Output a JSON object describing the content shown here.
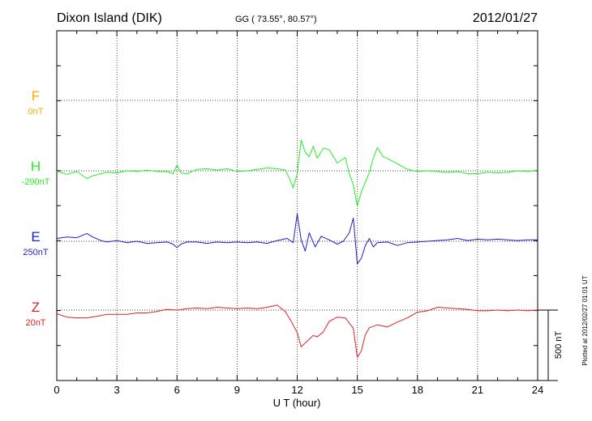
{
  "header": {
    "station": "Dixon Island (DIK)",
    "coords": "GG ( 73.55°,  80.57°)",
    "date": "2012/01/27"
  },
  "footer": {
    "plotted": "Plotted at 2012/02/27 01:01 UT"
  },
  "chart_data": {
    "type": "line",
    "xlabel": "U T (hour)",
    "xlim": [
      0,
      24
    ],
    "xticks": [
      0,
      3,
      6,
      9,
      12,
      15,
      18,
      21,
      24
    ],
    "grid": true,
    "scale_bar": {
      "label": "500 nT",
      "value_nT": 500
    },
    "series": [
      {
        "name": "F",
        "baseline": "0nT",
        "color": "#ffaa00",
        "points": []
      },
      {
        "name": "H",
        "baseline": "-290nT",
        "color": "#22ee22",
        "points": [
          [
            0,
            -3
          ],
          [
            0.5,
            -25
          ],
          [
            1,
            -5
          ],
          [
            1.5,
            -55
          ],
          [
            1.8,
            -35
          ],
          [
            2.5,
            -10
          ],
          [
            3,
            -15
          ],
          [
            3.5,
            0
          ],
          [
            4,
            -5
          ],
          [
            4.5,
            5
          ],
          [
            5,
            -5
          ],
          [
            5.5,
            -5
          ],
          [
            5.8,
            -20
          ],
          [
            6,
            40
          ],
          [
            6.2,
            -15
          ],
          [
            6.5,
            -20
          ],
          [
            7,
            10
          ],
          [
            7.5,
            15
          ],
          [
            8,
            5
          ],
          [
            8.5,
            15
          ],
          [
            9,
            -5
          ],
          [
            9.5,
            0
          ],
          [
            10,
            10
          ],
          [
            10.5,
            20
          ],
          [
            11,
            15
          ],
          [
            11.4,
            5
          ],
          [
            11.6,
            -50
          ],
          [
            11.8,
            -120
          ],
          [
            12,
            -20
          ],
          [
            12.2,
            220
          ],
          [
            12.4,
            130
          ],
          [
            12.6,
            100
          ],
          [
            12.8,
            175
          ],
          [
            13,
            90
          ],
          [
            13.3,
            160
          ],
          [
            13.6,
            150
          ],
          [
            14,
            55
          ],
          [
            14.4,
            95
          ],
          [
            14.6,
            -20
          ],
          [
            14.8,
            -100
          ],
          [
            15,
            -250
          ],
          [
            15.2,
            -150
          ],
          [
            15.4,
            -80
          ],
          [
            15.6,
            -15
          ],
          [
            15.8,
            90
          ],
          [
            16,
            165
          ],
          [
            16.3,
            100
          ],
          [
            16.6,
            80
          ],
          [
            17,
            50
          ],
          [
            17.5,
            10
          ],
          [
            18,
            -5
          ],
          [
            18.5,
            0
          ],
          [
            19,
            -5
          ],
          [
            19.5,
            -10
          ],
          [
            20,
            -5
          ],
          [
            20.5,
            -20
          ],
          [
            21,
            -20
          ],
          [
            21.5,
            -10
          ],
          [
            22,
            -15
          ],
          [
            22.5,
            -10
          ],
          [
            23,
            0
          ],
          [
            23.5,
            -5
          ],
          [
            24,
            5
          ]
        ]
      },
      {
        "name": "E",
        "baseline": "250nT",
        "color": "#1e1ecc",
        "points": [
          [
            0,
            20
          ],
          [
            0.5,
            30
          ],
          [
            1,
            25
          ],
          [
            1.5,
            55
          ],
          [
            1.8,
            30
          ],
          [
            2.2,
            5
          ],
          [
            2.5,
            -5
          ],
          [
            3,
            5
          ],
          [
            3.5,
            -10
          ],
          [
            4,
            0
          ],
          [
            4.5,
            -15
          ],
          [
            5,
            -10
          ],
          [
            5.5,
            -5
          ],
          [
            5.8,
            -20
          ],
          [
            6,
            -45
          ],
          [
            6.2,
            -20
          ],
          [
            6.5,
            -5
          ],
          [
            7,
            -5
          ],
          [
            7.5,
            -15
          ],
          [
            8,
            -5
          ],
          [
            8.5,
            -10
          ],
          [
            9,
            -5
          ],
          [
            9.5,
            -10
          ],
          [
            10,
            -5
          ],
          [
            10.5,
            -15
          ],
          [
            11,
            5
          ],
          [
            11.5,
            20
          ],
          [
            11.8,
            -10
          ],
          [
            12,
            195
          ],
          [
            12.2,
            10
          ],
          [
            12.4,
            -70
          ],
          [
            12.6,
            60
          ],
          [
            12.9,
            -40
          ],
          [
            13.2,
            35
          ],
          [
            13.6,
            10
          ],
          [
            14,
            -20
          ],
          [
            14.3,
            0
          ],
          [
            14.6,
            60
          ],
          [
            14.8,
            165
          ],
          [
            15,
            -160
          ],
          [
            15.2,
            -120
          ],
          [
            15.4,
            -30
          ],
          [
            15.6,
            20
          ],
          [
            15.8,
            -40
          ],
          [
            16,
            -10
          ],
          [
            16.5,
            -5
          ],
          [
            17,
            -30
          ],
          [
            17.5,
            -10
          ],
          [
            18,
            -5
          ],
          [
            18.5,
            0
          ],
          [
            19,
            5
          ],
          [
            19.5,
            10
          ],
          [
            20,
            20
          ],
          [
            20.5,
            5
          ],
          [
            21,
            15
          ],
          [
            21.5,
            10
          ],
          [
            22,
            15
          ],
          [
            22.5,
            10
          ],
          [
            23,
            5
          ],
          [
            23.5,
            10
          ],
          [
            24,
            10
          ]
        ]
      },
      {
        "name": "Z",
        "baseline": "20nT",
        "color": "#dd2222",
        "points": [
          [
            0,
            -25
          ],
          [
            0.5,
            -50
          ],
          [
            1,
            -55
          ],
          [
            1.5,
            -55
          ],
          [
            2,
            -45
          ],
          [
            2.5,
            -30
          ],
          [
            3,
            -30
          ],
          [
            3.5,
            -30
          ],
          [
            4,
            -20
          ],
          [
            4.5,
            -20
          ],
          [
            5,
            -10
          ],
          [
            5.5,
            5
          ],
          [
            6,
            0
          ],
          [
            6.5,
            10
          ],
          [
            7,
            15
          ],
          [
            7.5,
            10
          ],
          [
            8,
            20
          ],
          [
            8.5,
            15
          ],
          [
            9,
            10
          ],
          [
            9.5,
            15
          ],
          [
            10,
            10
          ],
          [
            10.5,
            20
          ],
          [
            11,
            35
          ],
          [
            11.4,
            -10
          ],
          [
            11.7,
            -80
          ],
          [
            12,
            -160
          ],
          [
            12.2,
            -260
          ],
          [
            12.5,
            -220
          ],
          [
            12.8,
            -180
          ],
          [
            13,
            -190
          ],
          [
            13.3,
            -155
          ],
          [
            13.6,
            -80
          ],
          [
            14,
            -50
          ],
          [
            14.4,
            -55
          ],
          [
            14.8,
            -130
          ],
          [
            15,
            -335
          ],
          [
            15.2,
            -290
          ],
          [
            15.4,
            -175
          ],
          [
            15.6,
            -125
          ],
          [
            16,
            -105
          ],
          [
            16.5,
            -120
          ],
          [
            17,
            -85
          ],
          [
            17.5,
            -55
          ],
          [
            18,
            -15
          ],
          [
            18.5,
            -5
          ],
          [
            19,
            20
          ],
          [
            19.5,
            15
          ],
          [
            20,
            10
          ],
          [
            20.5,
            5
          ],
          [
            21,
            -5
          ],
          [
            21.5,
            -5
          ],
          [
            22,
            0
          ],
          [
            22.5,
            -5
          ],
          [
            23,
            0
          ],
          [
            23.5,
            -5
          ],
          [
            24,
            0
          ]
        ]
      }
    ]
  }
}
